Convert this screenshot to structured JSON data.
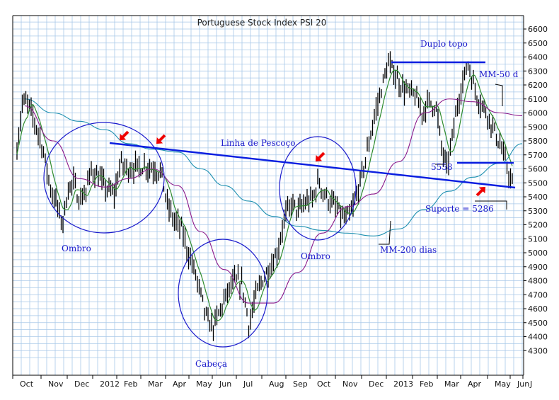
{
  "chart_data": {
    "type": "line",
    "title": "Portuguese Stock Index PSI 20",
    "ylim": [
      4200,
      6700
    ],
    "y_ticks": [
      4300,
      4400,
      4500,
      4600,
      4700,
      4800,
      4900,
      5000,
      5100,
      5200,
      5300,
      5400,
      5500,
      5600,
      5700,
      5800,
      5900,
      6000,
      6100,
      6200,
      6300,
      6400,
      6500,
      6600
    ],
    "x_tick_labels": [
      "Oct",
      "Nov",
      "Dec",
      "2012",
      "Feb",
      "Mar",
      "Apr",
      "May",
      "Jun",
      "Jul",
      "Aug",
      "Sep",
      "Oct",
      "Nov",
      "Dec",
      "2013",
      "Feb",
      "Mar",
      "Apr",
      "May",
      "Jun",
      "J"
    ],
    "grid": true,
    "colors": {
      "price": "#000000",
      "ma_short": "#2e8b2e",
      "ma_50": "#8b1a8b",
      "ma_200": "#1e90b0",
      "annotation": "#1a1acc",
      "arrow": "#ee0000",
      "grid": "#a8c8e8"
    },
    "series": [
      {
        "name": "MM-50 d",
        "x": [
          "Oct",
          "Nov",
          "Dec",
          "2012",
          "Feb",
          "Mar",
          "Apr",
          "May",
          "Jun",
          "Jul",
          "Aug",
          "Sep",
          "Oct",
          "Nov",
          "Dec",
          "2013",
          "Feb",
          "Mar",
          "Apr",
          "May",
          "Jun"
        ],
        "values": [
          6050,
          5800,
          5530,
          5470,
          5530,
          5600,
          5480,
          5150,
          4880,
          4640,
          4640,
          4860,
          5140,
          5330,
          5420,
          5650,
          6000,
          6100,
          6080,
          6000,
          5980
        ]
      },
      {
        "name": "MM-200 dias",
        "x": [
          "Oct",
          "Nov",
          "Dec",
          "2012",
          "Feb",
          "Mar",
          "Apr",
          "May",
          "Jun",
          "Jul",
          "Aug",
          "Sep",
          "Oct",
          "Nov",
          "Dec",
          "2013",
          "Feb",
          "Mar",
          "Apr",
          "May",
          "Jun"
        ],
        "values": [
          6100,
          6000,
          5940,
          5880,
          5780,
          5740,
          5720,
          5600,
          5480,
          5370,
          5260,
          5190,
          5160,
          5140,
          5120,
          5170,
          5310,
          5440,
          5540,
          5640,
          5780
        ]
      }
    ],
    "annotations": {
      "title_label": "Duplo topo",
      "neckline_label": "Linha de Pescoço",
      "ma50_label": "MM-50 d",
      "ma200_label": "MM-200 dias",
      "left_shoulder_label": "Ombro",
      "head_label": "Cabeça",
      "right_shoulder_label": "Ombro",
      "level_label": "5558",
      "support_label": "Suporte = 5286"
    }
  }
}
